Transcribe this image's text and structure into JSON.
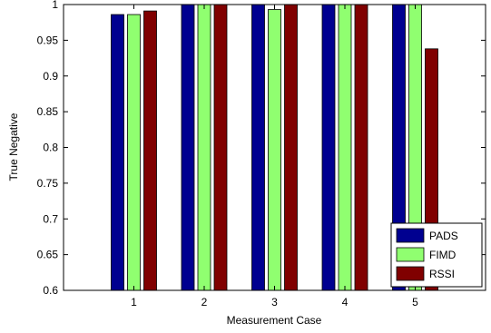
{
  "chart_data": {
    "type": "bar",
    "categories": [
      "1",
      "2",
      "3",
      "4",
      "5"
    ],
    "series": [
      {
        "name": "PADS",
        "values": [
          0.986,
          1.0,
          1.0,
          1.0,
          1.0
        ],
        "color": "#000090"
      },
      {
        "name": "FIMD",
        "values": [
          0.986,
          1.0,
          0.993,
          1.0,
          1.0
        ],
        "color": "#90ff70"
      },
      {
        "name": "RSSI",
        "values": [
          0.991,
          1.0,
          1.0,
          1.0,
          0.938
        ],
        "color": "#800000"
      }
    ],
    "xlabel": "Measurement Case",
    "ylabel": "True Negative",
    "ylim": [
      0.6,
      1.0
    ],
    "yticks": [
      "0.6",
      "0.65",
      "0.7",
      "0.75",
      "0.8",
      "0.85",
      "0.9",
      "0.95",
      "1"
    ],
    "grid": false,
    "legend_position": "bottom-right"
  }
}
